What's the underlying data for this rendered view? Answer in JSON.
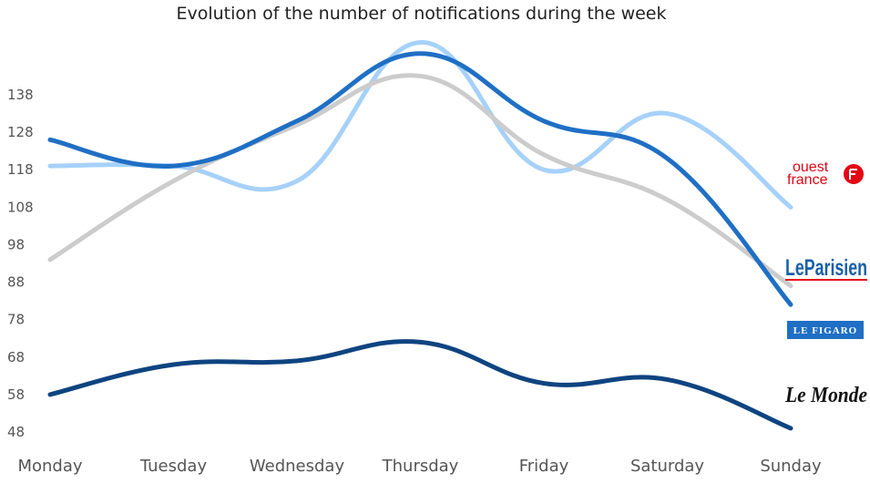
{
  "chart_data": {
    "type": "line",
    "title": "Evolution of the number of notifications during the week",
    "categories": [
      "Monday",
      "Tuesday",
      "Wednesday",
      "Thursday",
      "Friday",
      "Saturday",
      "Sunday"
    ],
    "y_ticks": [
      48,
      58,
      68,
      78,
      88,
      98,
      108,
      118,
      128,
      138
    ],
    "ylim": [
      48,
      150
    ],
    "grid": false,
    "series": [
      {
        "name": "ouest france",
        "color": "#a6d1fa",
        "values": [
          119,
          119,
          115,
          152,
          118,
          133,
          108
        ]
      },
      {
        "name": "Le Parisien",
        "color": "#1f6fc5",
        "values": [
          126,
          119,
          131,
          149,
          131,
          121,
          82
        ]
      },
      {
        "name": "LE FIGARO",
        "color": "#cccccc",
        "values": [
          94,
          115,
          130,
          143,
          122,
          110,
          87
        ]
      },
      {
        "name": "Le Monde",
        "color": "#0e4480",
        "values": [
          58,
          66,
          67,
          72,
          61,
          62,
          49
        ]
      }
    ],
    "logos": {
      "ouest_france_line1": "ouest",
      "ouest_france_line2": "france",
      "le_parisien": "LeParisien",
      "le_figaro": "LE FIGARO",
      "le_monde": "Le Monde"
    }
  }
}
